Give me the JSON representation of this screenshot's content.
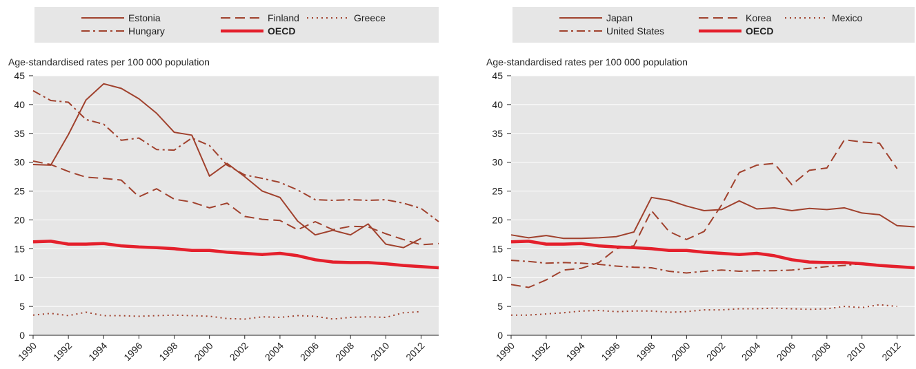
{
  "chart_data": [
    {
      "type": "line",
      "y_label": "Age-standardised rates per 100 000 population",
      "x": [
        1990,
        1991,
        1992,
        1993,
        1994,
        1995,
        1996,
        1997,
        1998,
        1999,
        2000,
        2001,
        2002,
        2003,
        2004,
        2005,
        2006,
        2007,
        2008,
        2009,
        2010,
        2011,
        2012,
        2013
      ],
      "xlim": [
        1990,
        2013
      ],
      "xticks": [
        1990,
        1992,
        1994,
        1996,
        1998,
        2000,
        2002,
        2004,
        2006,
        2008,
        2010,
        2012
      ],
      "ylim": [
        0,
        45
      ],
      "yticks": [
        0,
        5,
        10,
        15,
        20,
        25,
        30,
        35,
        40,
        45
      ],
      "grid": true,
      "series": [
        {
          "name": "Estonia",
          "color": "#a0412d",
          "dash": "solid",
          "values": [
            29.6,
            29.5,
            34.8,
            40.8,
            43.6,
            42.8,
            41,
            38.5,
            35.2,
            34.7,
            27.6,
            29.8,
            27.5,
            25,
            23.9,
            19.8,
            17.4,
            18.2,
            17.4,
            19.3,
            15.8,
            15.2,
            16.8,
            null
          ]
        },
        {
          "name": "Finland",
          "color": "#a0412d",
          "dash": "dashed",
          "values": [
            30.2,
            29.6,
            28.4,
            27.4,
            27.2,
            26.9,
            24,
            25.4,
            23.6,
            23.1,
            22.1,
            22.9,
            20.6,
            20.1,
            19.9,
            18.3,
            19.7,
            18.3,
            18.9,
            18.8,
            17.6,
            16.6,
            15.7,
            15.9
          ]
        },
        {
          "name": "Greece",
          "color": "#a0412d",
          "dash": "dotted",
          "values": [
            3.5,
            3.8,
            3.4,
            4,
            3.4,
            3.4,
            3.3,
            3.4,
            3.5,
            3.4,
            3.3,
            2.9,
            2.8,
            3.2,
            3.1,
            3.4,
            3.3,
            2.8,
            3.1,
            3.2,
            3.1,
            3.9,
            4.1,
            null
          ]
        },
        {
          "name": "Hungary",
          "color": "#a0412d",
          "dash": "dashdot",
          "values": [
            42.4,
            40.7,
            40.4,
            37.4,
            36.6,
            33.8,
            34.2,
            32.2,
            32.1,
            34.2,
            32.9,
            29.5,
            27.8,
            27.2,
            26.5,
            25.2,
            23.5,
            23.4,
            23.5,
            23.4,
            23.5,
            22.9,
            22,
            19.7
          ]
        },
        {
          "name": "OECD",
          "color": "#e4202c",
          "dash": "bold",
          "values": [
            16.2,
            16.3,
            15.8,
            15.8,
            15.9,
            15.5,
            15.3,
            15.2,
            15,
            14.7,
            14.7,
            14.4,
            14.2,
            14,
            14.2,
            13.8,
            13.1,
            12.7,
            12.6,
            12.6,
            12.4,
            12.1,
            11.9,
            11.7
          ]
        }
      ]
    },
    {
      "type": "line",
      "y_label": "Age-standardised rates per 100 000 population",
      "x": [
        1990,
        1991,
        1992,
        1993,
        1994,
        1995,
        1996,
        1997,
        1998,
        1999,
        2000,
        2001,
        2002,
        2003,
        2004,
        2005,
        2006,
        2007,
        2008,
        2009,
        2010,
        2011,
        2012,
        2013
      ],
      "xlim": [
        1990,
        2013
      ],
      "xticks": [
        1990,
        1992,
        1994,
        1996,
        1998,
        2000,
        2002,
        2004,
        2006,
        2008,
        2010,
        2012
      ],
      "ylim": [
        0,
        45
      ],
      "yticks": [
        0,
        5,
        10,
        15,
        20,
        25,
        30,
        35,
        40,
        45
      ],
      "grid": true,
      "series": [
        {
          "name": "Japan",
          "color": "#a0412d",
          "dash": "solid",
          "values": [
            17.4,
            16.9,
            17.3,
            16.8,
            16.8,
            16.9,
            17.1,
            17.9,
            23.9,
            23.4,
            22.4,
            21.6,
            21.8,
            23.3,
            21.9,
            22.1,
            21.6,
            22,
            21.8,
            22.1,
            21.2,
            20.9,
            19,
            18.8
          ]
        },
        {
          "name": "Korea",
          "color": "#a0412d",
          "dash": "dashed",
          "values": [
            8.8,
            8.3,
            9.6,
            11.3,
            11.6,
            12.6,
            15,
            15.5,
            21.6,
            18,
            16.6,
            18,
            22.6,
            28.2,
            29.5,
            29.8,
            26.1,
            28.6,
            29,
            33.9,
            33.5,
            33.3,
            28.9,
            null
          ]
        },
        {
          "name": "Mexico",
          "color": "#a0412d",
          "dash": "dotted",
          "values": [
            3.5,
            3.5,
            3.7,
            3.9,
            4.2,
            4.3,
            4.1,
            4.2,
            4.2,
            4,
            4.1,
            4.4,
            4.4,
            4.6,
            4.6,
            4.7,
            4.6,
            4.5,
            4.6,
            5,
            4.8,
            5.3,
            5,
            null
          ]
        },
        {
          "name": "United States",
          "color": "#a0412d",
          "dash": "dashdot",
          "values": [
            13,
            12.8,
            12.5,
            12.6,
            12.5,
            12.3,
            12,
            11.8,
            11.7,
            11.1,
            10.8,
            11.1,
            11.3,
            11.1,
            11.2,
            11.2,
            11.3,
            11.6,
            11.9,
            12.1,
            12.4,
            null,
            null,
            null
          ]
        },
        {
          "name": "OECD",
          "color": "#e4202c",
          "dash": "bold",
          "values": [
            16.2,
            16.3,
            15.8,
            15.8,
            15.9,
            15.5,
            15.3,
            15.2,
            15,
            14.7,
            14.7,
            14.4,
            14.2,
            14,
            14.2,
            13.8,
            13.1,
            12.7,
            12.6,
            12.6,
            12.4,
            12.1,
            11.9,
            11.7
          ]
        }
      ]
    }
  ]
}
